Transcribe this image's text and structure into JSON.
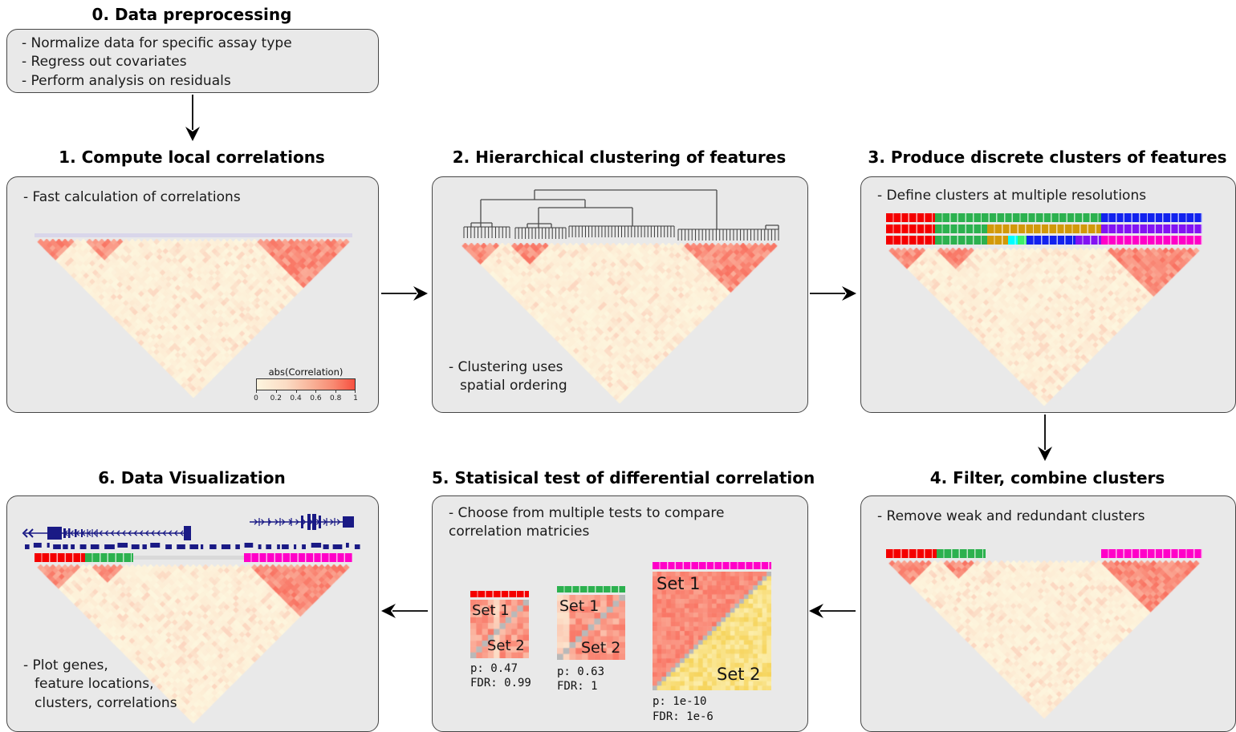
{
  "palette": {
    "red": "#f40000",
    "green": "#2cb14f",
    "blue": "#1222ee",
    "gold": "#d2990a",
    "purple": "#8214f2",
    "cyan": "#00feff",
    "spring": "#3cf06a",
    "magenta": "#ff00c8",
    "navy": "#1a1a85",
    "panel_bg": "#e9e9e9",
    "heat_low": "#fdf6de",
    "heat_high": "#f73e30",
    "diag_gray": "#b9b9b9",
    "set2_yellow": "#f7d25c",
    "track_lavender": "#d9d6ea"
  },
  "step0": {
    "title": "0. Data preprocessing",
    "lines": [
      "- Normalize data for specific assay type",
      "- Regress out covariates",
      "- Perform analysis on residuals"
    ]
  },
  "panels": {
    "p1": {
      "title": "1. Compute local correlations",
      "note": "- Fast calculation of correlations",
      "colorbar_title": "abs(Correlation)",
      "colorbar_ticks": [
        "0",
        "0.2",
        "0.4",
        "0.6",
        "0.8",
        "1"
      ]
    },
    "p2": {
      "title": "2. Hierarchical clustering of features",
      "note_line1": "- Clustering uses",
      "note_line2": "spatial ordering"
    },
    "p3": {
      "title": "3. Produce discrete clusters of features",
      "note": "- Define clusters at multiple resolutions"
    },
    "p4": {
      "title": "4. Filter, combine clusters",
      "note": "- Remove weak and redundant clusters"
    },
    "p5": {
      "title": "5. Statisical test of differential correlation",
      "note_line1": "- Choose from multiple tests to compare",
      "note_line2": "correlation matricies",
      "tests": [
        {
          "set1": "Set 1",
          "set2": "Set 2",
          "p": "p: 0.47",
          "fdr": "FDR: 0.99",
          "bar": "#f40000"
        },
        {
          "set1": "Set 1",
          "set2": "Set 2",
          "p": "p: 0.63",
          "fdr": "FDR: 1",
          "bar": "#2cb14f"
        },
        {
          "set1": "Set 1",
          "set2": "Set 2",
          "p": "p: 1e-10",
          "fdr": "FDR: 1e-6",
          "bar": "#ff00c8"
        }
      ]
    },
    "p6": {
      "title": "6. Data Visualization",
      "note_line1": "- Plot genes,",
      "note_line2": "feature locations,",
      "note_line3": "clusters, correlations"
    }
  },
  "cluster_bars": {
    "p3_rows": [
      [
        {
          "c": "red",
          "f": 0,
          "t": 0.155
        },
        {
          "c": "green",
          "f": 0.155,
          "t": 0.68
        },
        {
          "c": "blue",
          "f": 0.68,
          "t": 1
        }
      ],
      [
        {
          "c": "red",
          "f": 0,
          "t": 0.155
        },
        {
          "c": "green",
          "f": 0.155,
          "t": 0.32
        },
        {
          "c": "gold",
          "f": 0.32,
          "t": 0.68
        },
        {
          "c": "purple",
          "f": 0.68,
          "t": 1
        }
      ],
      [
        {
          "c": "red",
          "f": 0,
          "t": 0.155
        },
        {
          "c": "green",
          "f": 0.155,
          "t": 0.32
        },
        {
          "c": "gold",
          "f": 0.32,
          "t": 0.385
        },
        {
          "c": "cyan",
          "f": 0.385,
          "t": 0.415
        },
        {
          "c": "spring",
          "f": 0.415,
          "t": 0.445
        },
        {
          "c": "blue",
          "f": 0.445,
          "t": 0.6
        },
        {
          "c": "purple",
          "f": 0.6,
          "t": 0.68
        },
        {
          "c": "magenta",
          "f": 0.68,
          "t": 1
        }
      ]
    ],
    "p4_row": [
      [
        {
          "c": "red",
          "f": 0,
          "t": 0.16
        },
        {
          "c": "green",
          "f": 0.16,
          "t": 0.315
        },
        {
          "c": "magenta",
          "f": 0.68,
          "t": 1
        }
      ]
    ],
    "p6_row": [
      [
        {
          "c": "red",
          "f": 0,
          "t": 0.16
        },
        {
          "c": "green",
          "f": 0.16,
          "t": 0.31
        },
        {
          "c": "magenta",
          "f": 0.66,
          "t": 1
        }
      ]
    ]
  },
  "figures": {
    "heatmap_regions_top": [
      [
        0,
        0.135
      ],
      [
        0.155,
        0.3
      ],
      [
        0.68,
        1
      ]
    ],
    "heatmap_regions_bottom": [
      [
        0,
        0.155
      ],
      [
        0.165,
        0.3
      ],
      [
        0.665,
        1
      ]
    ]
  }
}
